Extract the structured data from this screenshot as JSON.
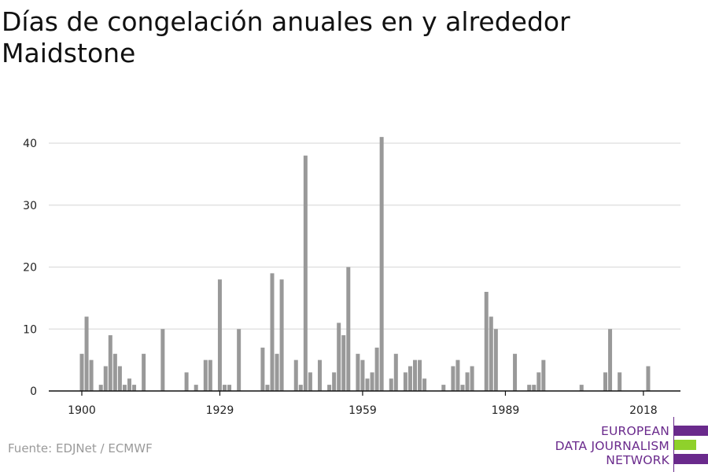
{
  "title": "Días de congelación anuales en y alrededor Maidstone",
  "source": "Fuente: EDJNet / ECMWF",
  "logo": {
    "lines": [
      "EUROPEAN",
      "DATA JOURNALISM",
      "NETWORK"
    ]
  },
  "colors": {
    "bar": "#999999",
    "grid": "#dddddd",
    "axis": "#111111",
    "logo_purple": "#6a2a8c",
    "logo_green": "#8fd12b"
  },
  "chart_data": {
    "type": "bar",
    "xlabel": "",
    "ylabel": "",
    "xlim": [
      1900,
      2021
    ],
    "ylim": [
      0,
      42
    ],
    "yticks": [
      0,
      10,
      20,
      30,
      40
    ],
    "xticks": [
      1900,
      1929,
      1959,
      1989,
      2018
    ],
    "grid": true,
    "series": [
      {
        "values": [
          [
            1900,
            6
          ],
          [
            1901,
            12
          ],
          [
            1902,
            5
          ],
          [
            1904,
            1
          ],
          [
            1905,
            4
          ],
          [
            1906,
            9
          ],
          [
            1907,
            6
          ],
          [
            1908,
            4
          ],
          [
            1909,
            1
          ],
          [
            1910,
            2
          ],
          [
            1911,
            1
          ],
          [
            1913,
            6
          ],
          [
            1917,
            10
          ],
          [
            1922,
            3
          ],
          [
            1924,
            1
          ],
          [
            1926,
            5
          ],
          [
            1927,
            5
          ],
          [
            1929,
            18
          ],
          [
            1930,
            1
          ],
          [
            1931,
            1
          ],
          [
            1933,
            10
          ],
          [
            1938,
            7
          ],
          [
            1939,
            1
          ],
          [
            1940,
            19
          ],
          [
            1941,
            6
          ],
          [
            1942,
            18
          ],
          [
            1945,
            5
          ],
          [
            1946,
            1
          ],
          [
            1947,
            38
          ],
          [
            1948,
            3
          ],
          [
            1950,
            5
          ],
          [
            1952,
            1
          ],
          [
            1953,
            3
          ],
          [
            1954,
            11
          ],
          [
            1955,
            9
          ],
          [
            1956,
            20
          ],
          [
            1958,
            6
          ],
          [
            1959,
            5
          ],
          [
            1960,
            2
          ],
          [
            1961,
            3
          ],
          [
            1962,
            7
          ],
          [
            1963,
            41
          ],
          [
            1965,
            2
          ],
          [
            1966,
            6
          ],
          [
            1968,
            3
          ],
          [
            1969,
            4
          ],
          [
            1970,
            5
          ],
          [
            1971,
            5
          ],
          [
            1972,
            2
          ],
          [
            1976,
            1
          ],
          [
            1978,
            4
          ],
          [
            1979,
            5
          ],
          [
            1980,
            1
          ],
          [
            1981,
            3
          ],
          [
            1982,
            4
          ],
          [
            1985,
            16
          ],
          [
            1986,
            12
          ],
          [
            1987,
            10
          ],
          [
            1991,
            6
          ],
          [
            1994,
            1
          ],
          [
            1995,
            1
          ],
          [
            1996,
            3
          ],
          [
            1997,
            5
          ],
          [
            2005,
            1
          ],
          [
            2010,
            3
          ],
          [
            2011,
            10
          ],
          [
            2013,
            3
          ],
          [
            2019,
            4
          ]
        ]
      }
    ]
  }
}
